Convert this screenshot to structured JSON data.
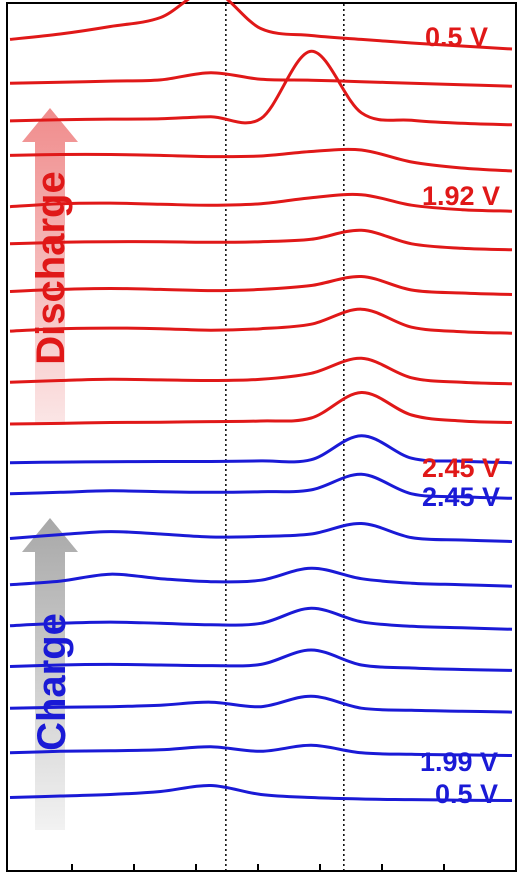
{
  "chart_data": {
    "type": "line",
    "title": "",
    "xlabel": "",
    "ylabel": "",
    "x": [
      0,
      10,
      20,
      30,
      40,
      50,
      60,
      70,
      80,
      90,
      100
    ],
    "reference_lines_x": [
      43,
      66.5
    ],
    "grid": false,
    "legend": "none",
    "voltage_labels": [
      {
        "text": "0.5 V",
        "group": "discharge"
      },
      {
        "text": "1.92 V",
        "group": "discharge"
      },
      {
        "text": "2.45 V",
        "group": "discharge"
      },
      {
        "text": "2.45 V",
        "group": "charge"
      },
      {
        "text": "1.99 V",
        "group": "charge"
      },
      {
        "text": "0.5 V",
        "group": "charge"
      }
    ],
    "arrows": [
      {
        "label": "Discharge",
        "group": "discharge"
      },
      {
        "label": "Charge",
        "group": "charge"
      }
    ],
    "colors": {
      "discharge": "#e01818",
      "charge": "#1a1ad6",
      "discharge_arrow": "#f08c8c",
      "charge_arrow": "#b0b0b0"
    },
    "series": [
      {
        "group": "discharge",
        "values": [
          0.62,
          0.8,
          1.05,
          1.35,
          2.25,
          0.98,
          0.75,
          0.62,
          0.5,
          0.4,
          0.3
        ]
      },
      {
        "group": "discharge",
        "values": [
          0.55,
          0.58,
          0.62,
          0.66,
          0.9,
          0.68,
          0.65,
          0.6,
          0.55,
          0.5,
          0.45
        ]
      },
      {
        "group": "discharge",
        "values": [
          0.68,
          0.72,
          0.74,
          0.75,
          0.82,
          0.76,
          3.0,
          0.95,
          0.7,
          0.6,
          0.55
        ]
      },
      {
        "group": "discharge",
        "values": [
          0.92,
          0.95,
          0.95,
          0.92,
          0.88,
          0.9,
          1.05,
          1.1,
          0.7,
          0.5,
          0.4
        ]
      },
      {
        "group": "discharge",
        "values": [
          0.6,
          0.7,
          0.72,
          0.68,
          0.65,
          0.7,
          0.9,
          1.0,
          0.65,
          0.5,
          0.45
        ]
      },
      {
        "group": "discharge",
        "values": [
          0.75,
          0.8,
          0.82,
          0.82,
          0.8,
          0.82,
          0.9,
          1.2,
          0.75,
          0.6,
          0.55
        ]
      },
      {
        "group": "discharge",
        "values": [
          0.55,
          0.62,
          0.65,
          0.62,
          0.58,
          0.62,
          0.75,
          1.05,
          0.6,
          0.5,
          0.45
        ]
      },
      {
        "group": "discharge",
        "values": [
          0.62,
          0.7,
          0.72,
          0.7,
          0.65,
          0.7,
          0.85,
          1.35,
          0.75,
          0.6,
          0.55
        ]
      },
      {
        "group": "discharge",
        "values": [
          0.3,
          0.36,
          0.4,
          0.38,
          0.36,
          0.4,
          0.6,
          1.1,
          0.45,
          0.3,
          0.25
        ]
      },
      {
        "group": "discharge",
        "values": [
          0.3,
          0.32,
          0.35,
          0.36,
          0.38,
          0.4,
          0.5,
          1.35,
          0.6,
          0.4,
          0.35
        ]
      },
      {
        "group": "charge",
        "values": [
          0.4,
          0.42,
          0.43,
          0.44,
          0.44,
          0.46,
          0.5,
          1.3,
          0.55,
          0.45,
          0.4
        ]
      },
      {
        "group": "charge",
        "values": [
          0.75,
          0.8,
          0.85,
          0.82,
          0.8,
          0.82,
          0.88,
          1.4,
          0.75,
          0.65,
          0.6
        ]
      },
      {
        "group": "charge",
        "values": [
          0.65,
          0.78,
          0.88,
          0.8,
          0.7,
          0.72,
          0.8,
          1.15,
          0.68,
          0.6,
          0.55
        ]
      },
      {
        "group": "charge",
        "values": [
          0.5,
          0.62,
          0.85,
          0.7,
          0.6,
          0.65,
          1.05,
          0.7,
          0.55,
          0.5,
          0.45
        ]
      },
      {
        "group": "charge",
        "values": [
          0.52,
          0.6,
          0.64,
          0.6,
          0.55,
          0.6,
          1.1,
          0.65,
          0.5,
          0.45,
          0.4
        ]
      },
      {
        "group": "charge",
        "values": [
          0.55,
          0.6,
          0.62,
          0.6,
          0.58,
          0.62,
          1.1,
          0.6,
          0.5,
          0.45,
          0.42
        ]
      },
      {
        "group": "charge",
        "values": [
          0.55,
          0.58,
          0.6,
          0.65,
          0.75,
          0.6,
          0.95,
          0.55,
          0.48,
          0.45,
          0.42
        ]
      },
      {
        "group": "charge",
        "values": [
          0.45,
          0.5,
          0.52,
          0.55,
          0.65,
          0.5,
          0.7,
          0.45,
          0.4,
          0.38,
          0.36
        ]
      },
      {
        "group": "charge",
        "values": [
          0.35,
          0.4,
          0.45,
          0.55,
          0.75,
          0.45,
          0.35,
          0.3,
          0.28,
          0.26,
          0.25
        ]
      }
    ]
  }
}
